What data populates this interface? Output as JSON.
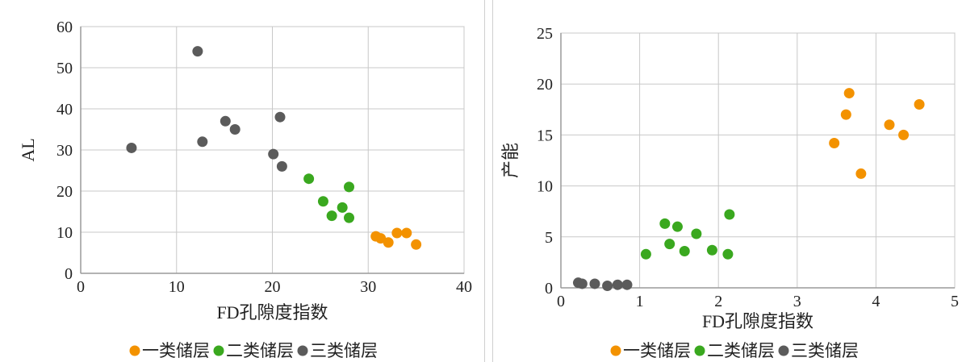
{
  "chart_data": [
    {
      "type": "scatter",
      "xlabel": "FD孔隙度指数",
      "ylabel": "AL",
      "xlim": [
        0,
        40
      ],
      "ylim": [
        0,
        60
      ],
      "xticks": [
        "0",
        "10",
        "20",
        "30",
        "40"
      ],
      "yticks": [
        "0",
        "10",
        "20",
        "30",
        "40",
        "50",
        "60"
      ],
      "grid": true,
      "legend_position": "bottom",
      "series": [
        {
          "name": "一类储层",
          "color": "#f39200",
          "points": [
            [
              30.8,
              9.0
            ],
            [
              31.3,
              8.5
            ],
            [
              32.1,
              7.5
            ],
            [
              33.0,
              9.8
            ],
            [
              34.0,
              9.8
            ],
            [
              35.0,
              7.0
            ]
          ]
        },
        {
          "name": "二类储层",
          "color": "#3aa81f",
          "points": [
            [
              23.8,
              23.0
            ],
            [
              25.3,
              17.5
            ],
            [
              26.2,
              14.0
            ],
            [
              27.3,
              16.0
            ],
            [
              28.0,
              21.0
            ],
            [
              28.0,
              13.5
            ]
          ]
        },
        {
          "name": "三类储层",
          "color": "#5b5b5b",
          "points": [
            [
              5.3,
              30.5
            ],
            [
              12.2,
              54.0
            ],
            [
              12.7,
              32.0
            ],
            [
              15.1,
              37.0
            ],
            [
              16.1,
              35.0
            ],
            [
              20.1,
              29.0
            ],
            [
              20.8,
              38.0
            ],
            [
              21.0,
              26.0
            ]
          ]
        }
      ]
    },
    {
      "type": "scatter",
      "xlabel": "FD孔隙度指数",
      "ylabel": "产能",
      "xlim": [
        0,
        5
      ],
      "ylim": [
        0,
        25
      ],
      "xticks": [
        "0",
        "1",
        "2",
        "3",
        "4",
        "5"
      ],
      "yticks": [
        "0",
        "5",
        "10",
        "15",
        "20",
        "25"
      ],
      "grid": true,
      "legend_position": "bottom",
      "series": [
        {
          "name": "一类储层",
          "color": "#f39200",
          "points": [
            [
              3.47,
              14.2
            ],
            [
              3.62,
              17.0
            ],
            [
              3.66,
              19.1
            ],
            [
              3.81,
              11.2
            ],
            [
              4.17,
              16.0
            ],
            [
              4.35,
              15.0
            ],
            [
              4.55,
              18.0
            ]
          ]
        },
        {
          "name": "二类储层",
          "color": "#3aa81f",
          "points": [
            [
              1.08,
              3.3
            ],
            [
              1.32,
              6.3
            ],
            [
              1.38,
              4.3
            ],
            [
              1.48,
              6.0
            ],
            [
              1.57,
              3.6
            ],
            [
              1.72,
              5.3
            ],
            [
              1.92,
              3.7
            ],
            [
              2.12,
              3.3
            ],
            [
              2.14,
              7.2
            ]
          ]
        },
        {
          "name": "三类储层",
          "color": "#5b5b5b",
          "points": [
            [
              0.22,
              0.5
            ],
            [
              0.27,
              0.4
            ],
            [
              0.43,
              0.4
            ],
            [
              0.59,
              0.2
            ],
            [
              0.72,
              0.3
            ],
            [
              0.84,
              0.3
            ]
          ]
        }
      ]
    }
  ]
}
